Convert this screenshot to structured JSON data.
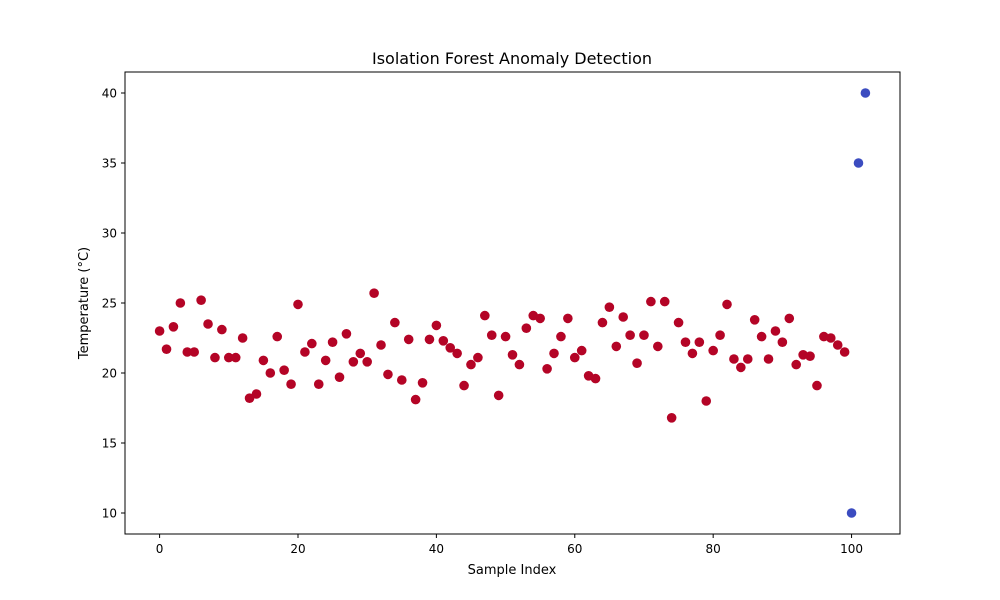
{
  "chart_data": {
    "type": "scatter",
    "title": "Isolation Forest Anomaly Detection",
    "xlabel": "Sample Index",
    "ylabel": "Temperature (°C)",
    "xlim": [
      -5,
      107
    ],
    "ylim": [
      8.5,
      41.5
    ],
    "xticks": [
      0,
      20,
      40,
      60,
      80,
      100
    ],
    "yticks": [
      10,
      15,
      20,
      25,
      30,
      35,
      40
    ],
    "grid": false,
    "legend": "none",
    "colors": {
      "normal": "#b40426",
      "anomaly": "#3b4cc0"
    },
    "series": [
      {
        "color": "#b40426",
        "x": [
          0,
          1,
          2,
          3,
          4,
          5,
          6,
          7,
          8,
          9,
          10,
          11,
          12,
          13,
          14,
          15,
          16,
          17,
          18,
          19,
          20,
          21,
          22,
          23,
          24,
          25,
          26,
          27,
          28,
          29,
          30,
          31,
          32,
          33,
          34,
          35,
          36,
          37,
          38,
          39,
          40,
          41,
          42,
          43,
          44,
          45,
          46,
          47,
          48,
          49,
          50,
          51,
          52,
          53,
          54,
          55,
          56,
          57,
          58,
          59,
          60,
          61,
          62,
          63,
          64,
          65,
          66,
          67,
          68,
          69,
          70,
          71,
          72,
          73,
          74,
          75,
          76,
          77,
          78,
          79,
          80,
          81,
          82,
          83,
          84,
          85,
          86,
          87,
          88,
          89,
          90,
          91,
          92,
          93,
          94,
          95,
          96,
          97,
          98,
          99
        ],
        "y": [
          23.0,
          21.7,
          23.3,
          25.0,
          21.5,
          21.5,
          25.2,
          23.5,
          21.1,
          23.1,
          21.1,
          21.1,
          22.5,
          18.2,
          18.5,
          20.9,
          20.0,
          22.6,
          20.2,
          19.2,
          24.9,
          21.5,
          22.1,
          19.2,
          20.9,
          22.2,
          19.7,
          22.8,
          20.8,
          21.4,
          20.8,
          25.7,
          22.0,
          19.9,
          23.6,
          19.5,
          22.4,
          18.1,
          19.3,
          22.4,
          23.4,
          22.3,
          21.8,
          21.4,
          19.1,
          20.6,
          21.1,
          24.1,
          22.7,
          18.4,
          22.6,
          21.3,
          20.6,
          23.2,
          24.1,
          23.9,
          20.3,
          21.4,
          22.6,
          23.9,
          21.1,
          21.6,
          19.8,
          19.6,
          23.6,
          24.7,
          21.9,
          24.0,
          22.7,
          20.7,
          22.7,
          25.1,
          21.9,
          25.1,
          16.8,
          23.6,
          22.2,
          21.4,
          22.2,
          18.0,
          21.6,
          22.7,
          24.9,
          21.0,
          20.4,
          21.0,
          23.8,
          22.6,
          21.0,
          23.0,
          22.2,
          23.9,
          20.6,
          21.3,
          21.2,
          19.1,
          22.6,
          22.5,
          22.0,
          21.5
        ]
      },
      {
        "color": "#3b4cc0",
        "x": [
          100,
          101,
          102
        ],
        "y": [
          10.0,
          35.0,
          40.0
        ]
      }
    ]
  }
}
